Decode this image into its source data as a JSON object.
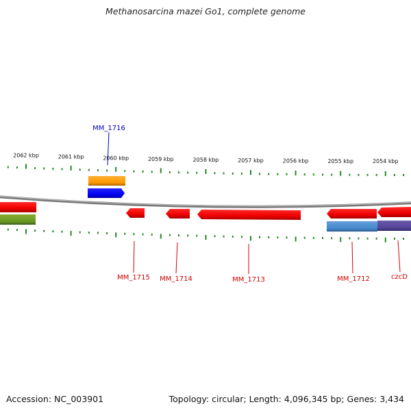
{
  "title": "Methanosarcina mazei Go1, complete genome",
  "footer": {
    "accession": "Accession: NC_003901",
    "summary": "Topology: circular; Length: 4,096,345 bp; Genes: 3,434"
  },
  "colors": {
    "forward_gene": "#ff0000",
    "orange_feature": "#ff9900",
    "blue_feature": "#0000ff",
    "olive_feature": "#669922",
    "steelblue_feature": "#4488cc",
    "purple_feature": "#554499",
    "tick": "#228822",
    "backbone": "#888888",
    "red_label": "#cc0000",
    "blue_label": "#0000bb"
  },
  "scale": {
    "ticks_kbp": [
      "2062 kbp",
      "2061 kbp",
      "2060 kbp",
      "2059 kbp",
      "2058 kbp",
      "2057 kbp",
      "2056 kbp",
      "2055 kbp",
      "2054 kbp"
    ]
  },
  "gene_labels": [
    {
      "id": "MM_1716",
      "strand": "top"
    },
    {
      "id": "MM_1715",
      "strand": "bottom"
    },
    {
      "id": "MM_1714",
      "strand": "bottom"
    },
    {
      "id": "MM_1713",
      "strand": "bottom"
    },
    {
      "id": "MM_1712",
      "strand": "bottom"
    },
    {
      "id": "czcD",
      "strand": "bottom"
    }
  ]
}
